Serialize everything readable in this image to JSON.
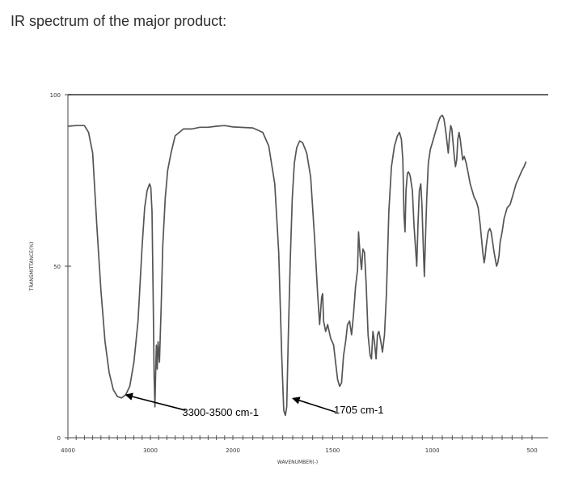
{
  "page": {
    "prompt": "IR spectrum of the major product:"
  },
  "chart_data": {
    "type": "line",
    "xlabel": "WAVENUMBER(-)",
    "ylabel": "TRANSMITTANCE(%)",
    "xlim": [
      4000,
      450
    ],
    "ylim": [
      0,
      100
    ],
    "x_ticks": [
      {
        "value": 4000,
        "label": "4000"
      },
      {
        "value": 3000,
        "label": "3000"
      },
      {
        "value": 2000,
        "label": "2000"
      },
      {
        "value": 1500,
        "label": "1500"
      },
      {
        "value": 1000,
        "label": "1000"
      },
      {
        "value": 500,
        "label": "500"
      }
    ],
    "y_ticks": [
      {
        "value": 0,
        "label": "0"
      },
      {
        "value": 50,
        "label": "50"
      },
      {
        "value": 100,
        "label": "100"
      }
    ],
    "series": [
      {
        "color": "#555555",
        "points": [
          [
            4000,
            90.8
          ],
          [
            3900,
            91
          ],
          [
            3800,
            91
          ],
          [
            3750,
            89
          ],
          [
            3700,
            83
          ],
          [
            3650,
            62
          ],
          [
            3600,
            43
          ],
          [
            3550,
            28
          ],
          [
            3500,
            19
          ],
          [
            3450,
            14
          ],
          [
            3400,
            12
          ],
          [
            3350,
            11.6
          ],
          [
            3300,
            12.5
          ],
          [
            3250,
            15
          ],
          [
            3200,
            22
          ],
          [
            3150,
            34
          ],
          [
            3100,
            56
          ],
          [
            3070,
            67
          ],
          [
            3040,
            72
          ],
          [
            3010,
            74
          ],
          [
            2995,
            73
          ],
          [
            2980,
            66
          ],
          [
            2965,
            38
          ],
          [
            2955,
            18
          ],
          [
            2945,
            9
          ],
          [
            2937,
            18
          ],
          [
            2927,
            27
          ],
          [
            2917,
            20
          ],
          [
            2907,
            28
          ],
          [
            2890,
            22
          ],
          [
            2870,
            38
          ],
          [
            2850,
            56
          ],
          [
            2820,
            70
          ],
          [
            2790,
            78
          ],
          [
            2750,
            83
          ],
          [
            2700,
            88
          ],
          [
            2600,
            90
          ],
          [
            2500,
            90
          ],
          [
            2400,
            90.5
          ],
          [
            2300,
            90.5
          ],
          [
            2200,
            90.8
          ],
          [
            2100,
            91
          ],
          [
            2000,
            90.6
          ],
          [
            1900,
            90.3
          ],
          [
            1850,
            89
          ],
          [
            1820,
            85
          ],
          [
            1790,
            74
          ],
          [
            1770,
            54
          ],
          [
            1755,
            24
          ],
          [
            1745,
            8
          ],
          [
            1737,
            6.5
          ],
          [
            1730,
            9
          ],
          [
            1722,
            30
          ],
          [
            1712,
            52
          ],
          [
            1702,
            70
          ],
          [
            1692,
            80
          ],
          [
            1680,
            84.5
          ],
          [
            1665,
            86.5
          ],
          [
            1650,
            86
          ],
          [
            1630,
            83
          ],
          [
            1610,
            76
          ],
          [
            1590,
            58
          ],
          [
            1575,
            42
          ],
          [
            1565,
            33
          ],
          [
            1555,
            41
          ],
          [
            1550,
            42
          ],
          [
            1545,
            34
          ],
          [
            1535,
            31
          ],
          [
            1525,
            33
          ],
          [
            1510,
            29
          ],
          [
            1495,
            27
          ],
          [
            1485,
            22
          ],
          [
            1475,
            17
          ],
          [
            1465,
            15
          ],
          [
            1455,
            16
          ],
          [
            1445,
            24
          ],
          [
            1435,
            28
          ],
          [
            1425,
            33
          ],
          [
            1415,
            34
          ],
          [
            1405,
            30
          ],
          [
            1395,
            36
          ],
          [
            1385,
            44
          ],
          [
            1375,
            49
          ],
          [
            1370,
            60
          ],
          [
            1362,
            53
          ],
          [
            1355,
            49
          ],
          [
            1348,
            55
          ],
          [
            1340,
            54
          ],
          [
            1332,
            45
          ],
          [
            1322,
            30
          ],
          [
            1312,
            24
          ],
          [
            1305,
            23
          ],
          [
            1298,
            31
          ],
          [
            1290,
            28
          ],
          [
            1282,
            23
          ],
          [
            1275,
            30
          ],
          [
            1268,
            31
          ],
          [
            1258,
            28
          ],
          [
            1250,
            25
          ],
          [
            1240,
            30
          ],
          [
            1230,
            42
          ],
          [
            1218,
            66
          ],
          [
            1205,
            79
          ],
          [
            1190,
            85
          ],
          [
            1175,
            88
          ],
          [
            1165,
            89
          ],
          [
            1155,
            87
          ],
          [
            1148,
            81
          ],
          [
            1142,
            65
          ],
          [
            1137,
            60
          ],
          [
            1132,
            72
          ],
          [
            1125,
            77
          ],
          [
            1120,
            77.5
          ],
          [
            1115,
            77
          ],
          [
            1110,
            76
          ],
          [
            1100,
            72
          ],
          [
            1092,
            62
          ],
          [
            1085,
            56
          ],
          [
            1078,
            50
          ],
          [
            1072,
            62
          ],
          [
            1065,
            72
          ],
          [
            1058,
            74
          ],
          [
            1052,
            68
          ],
          [
            1046,
            57
          ],
          [
            1040,
            47
          ],
          [
            1034,
            59
          ],
          [
            1028,
            70
          ],
          [
            1020,
            80
          ],
          [
            1010,
            84
          ],
          [
            1000,
            86
          ],
          [
            990,
            88
          ],
          [
            980,
            90
          ],
          [
            970,
            92
          ],
          [
            960,
            93.5
          ],
          [
            950,
            94
          ],
          [
            942,
            93
          ],
          [
            934,
            90
          ],
          [
            926,
            86
          ],
          [
            920,
            83
          ],
          [
            914,
            88
          ],
          [
            908,
            91
          ],
          [
            902,
            90
          ],
          [
            896,
            86
          ],
          [
            890,
            82
          ],
          [
            884,
            79
          ],
          [
            878,
            81
          ],
          [
            872,
            87
          ],
          [
            866,
            89
          ],
          [
            860,
            87
          ],
          [
            854,
            84
          ],
          [
            848,
            81
          ],
          [
            840,
            82
          ],
          [
            830,
            80
          ],
          [
            820,
            77
          ],
          [
            810,
            74
          ],
          [
            800,
            72
          ],
          [
            790,
            70
          ],
          [
            780,
            69
          ],
          [
            770,
            67
          ],
          [
            760,
            62
          ],
          [
            750,
            56
          ],
          [
            745,
            53
          ],
          [
            740,
            51
          ],
          [
            735,
            53
          ],
          [
            730,
            56
          ],
          [
            725,
            58
          ],
          [
            720,
            60
          ],
          [
            712,
            61
          ],
          [
            705,
            60
          ],
          [
            698,
            57
          ],
          [
            690,
            54
          ],
          [
            684,
            52
          ],
          [
            678,
            50
          ],
          [
            672,
            51
          ],
          [
            666,
            53
          ],
          [
            660,
            57
          ],
          [
            650,
            60
          ],
          [
            640,
            64
          ],
          [
            625,
            67
          ],
          [
            610,
            68
          ],
          [
            595,
            71
          ],
          [
            580,
            74
          ],
          [
            565,
            76
          ],
          [
            550,
            78
          ],
          [
            540,
            79
          ],
          [
            530,
            80.5
          ]
        ]
      }
    ],
    "annotations": [
      {
        "text": "3300-3500 cm-1",
        "tip": [
          3300,
          12.5
        ],
        "tail": [
          2575,
          8
        ]
      },
      {
        "text": "1705 cm-1",
        "tip": [
          1700,
          11.5
        ],
        "tail": [
          1485,
          7.5
        ]
      }
    ]
  }
}
